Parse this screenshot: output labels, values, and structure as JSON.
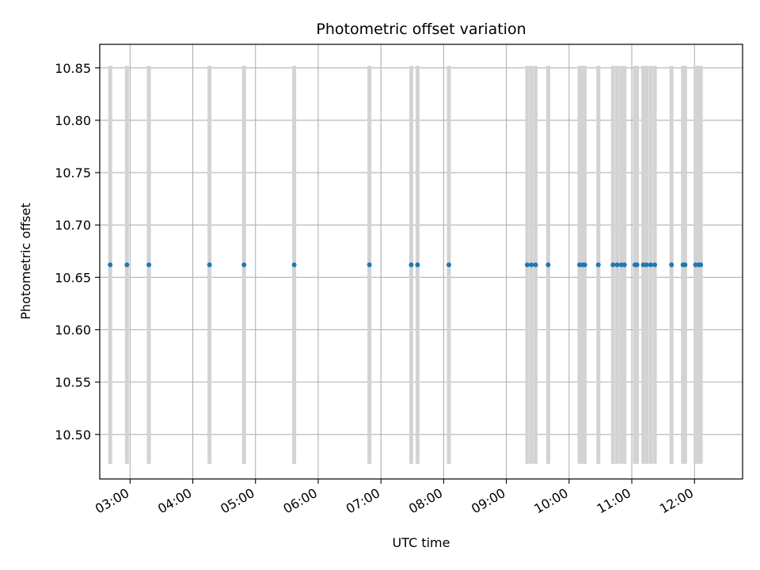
{
  "chart_data": {
    "type": "scatter",
    "title": "Photometric offset variation",
    "xlabel": "UTC time",
    "ylabel": "Photometric offset",
    "x_ticks": [
      "03:00",
      "04:00",
      "05:00",
      "06:00",
      "07:00",
      "08:00",
      "09:00",
      "10:00",
      "11:00",
      "12:00"
    ],
    "y_ticks": [
      "10.50",
      "10.55",
      "10.60",
      "10.65",
      "10.70",
      "10.75",
      "10.80",
      "10.85"
    ],
    "xlim": [
      "02:31",
      "12:46"
    ],
    "ylim": [
      10.4575,
      10.8725
    ],
    "grid": true,
    "colors": {
      "points": "#1f77b4",
      "error_bars": "#d3d3d3",
      "grid": "#b0b0b0"
    },
    "series": [
      {
        "x": [
          "02:41",
          "02:57",
          "03:18",
          "04:16",
          "04:49",
          "05:37",
          "06:49",
          "07:29",
          "07:35",
          "08:05",
          "09:20",
          "09:24",
          "09:28",
          "09:40",
          "10:10",
          "10:13",
          "10:15",
          "10:28",
          "10:42",
          "10:46",
          "10:50",
          "10:53",
          "11:03",
          "11:05",
          "11:11",
          "11:14",
          "11:18",
          "11:22",
          "11:38",
          "11:49",
          "11:51",
          "12:01",
          "12:04",
          "12:06"
        ],
        "y": [
          10.662,
          10.662,
          10.662,
          10.662,
          10.662,
          10.662,
          10.662,
          10.662,
          10.662,
          10.662,
          10.662,
          10.662,
          10.662,
          10.662,
          10.662,
          10.662,
          10.662,
          10.662,
          10.662,
          10.662,
          10.662,
          10.662,
          10.662,
          10.662,
          10.662,
          10.662,
          10.662,
          10.662,
          10.662,
          10.662,
          10.662,
          10.662,
          10.662,
          10.662
        ],
        "y_err": [
          0.19,
          0.19,
          0.19,
          0.19,
          0.19,
          0.19,
          0.19,
          0.19,
          0.19,
          0.19,
          0.19,
          0.19,
          0.19,
          0.19,
          0.19,
          0.19,
          0.19,
          0.19,
          0.19,
          0.19,
          0.19,
          0.19,
          0.19,
          0.19,
          0.19,
          0.19,
          0.19,
          0.19,
          0.19,
          0.19,
          0.19,
          0.19,
          0.19,
          0.19
        ]
      }
    ]
  }
}
